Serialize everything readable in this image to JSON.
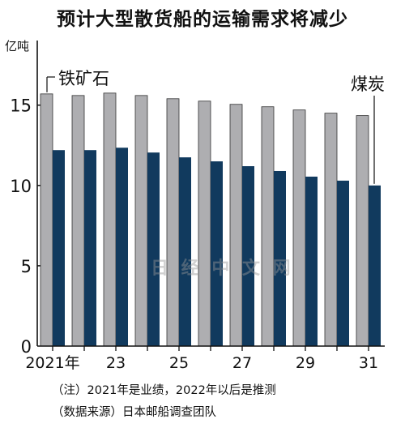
{
  "header": {
    "title": "预计大型散货船的运输需求将减少"
  },
  "axis": {
    "unit": "亿吨"
  },
  "notes": {
    "note1": "（注）2021年是业绩，2022年以后是推测",
    "note2": "（数据来源）日本邮船调查团队"
  },
  "watermark": "日 经 中 文 网",
  "colors": {
    "iron_ore": "#aeaeb1",
    "coal": "#113a5e",
    "axis": "#111111"
  },
  "chart_data": {
    "type": "bar",
    "title": "预计大型散货船的运输需求将减少",
    "ylabel": "亿吨",
    "ylim": [
      0,
      16.5
    ],
    "yticks": [
      0,
      5,
      10,
      15
    ],
    "x": [
      2021,
      2022,
      2023,
      2024,
      2025,
      2026,
      2027,
      2028,
      2029,
      2030,
      2031
    ],
    "xtick_labels": [
      "2021年",
      "",
      "23",
      "",
      "25",
      "",
      "27",
      "",
      "29",
      "",
      "31"
    ],
    "series": [
      {
        "name": "铁矿石",
        "values": [
          15.7,
          15.6,
          15.75,
          15.6,
          15.4,
          15.25,
          15.05,
          14.9,
          14.7,
          14.5,
          14.35
        ]
      },
      {
        "name": "煤炭",
        "values": [
          12.2,
          12.2,
          12.35,
          12.05,
          11.75,
          11.5,
          11.2,
          10.9,
          10.55,
          10.3,
          10.0
        ]
      }
    ]
  }
}
